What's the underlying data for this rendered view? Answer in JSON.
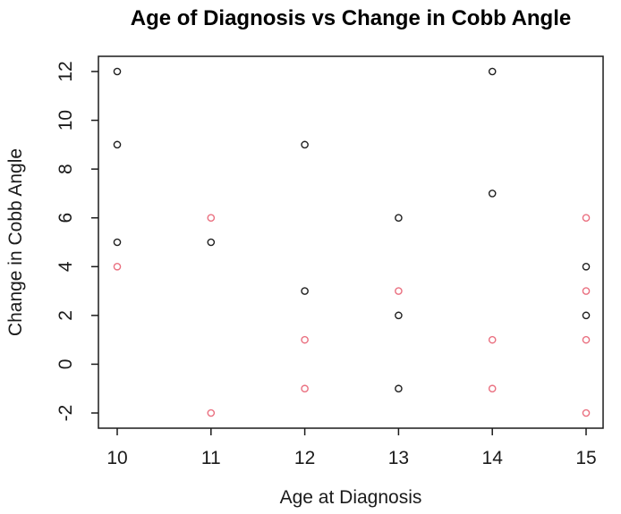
{
  "figure": {
    "background": "#ffffff",
    "text_color": "#1a1a1a",
    "title_color": "#000000"
  },
  "chart_data": {
    "type": "scatter",
    "title": "Age of Diagnosis vs Change in Cobb Angle",
    "xlabel": "Age at Diagnosis",
    "ylabel": "Change in Cobb Angle",
    "xlim": [
      10,
      15
    ],
    "ylim": [
      -2,
      12
    ],
    "x_ticks": [
      10,
      11,
      12,
      13,
      14,
      15
    ],
    "y_ticks": [
      -2,
      0,
      2,
      4,
      6,
      8,
      10,
      12
    ],
    "grid": false,
    "legend": "none",
    "marker": "open-circle",
    "axis_color": "#1a1a1a",
    "series": [
      {
        "name": "black-points",
        "color": "#1f1f1f",
        "points": [
          [
            10,
            12
          ],
          [
            10,
            9
          ],
          [
            10,
            5
          ],
          [
            11,
            5
          ],
          [
            12,
            9
          ],
          [
            12,
            3
          ],
          [
            13,
            6
          ],
          [
            13,
            2
          ],
          [
            13,
            -1
          ],
          [
            14,
            12
          ],
          [
            14,
            7
          ],
          [
            15,
            4
          ],
          [
            15,
            2
          ]
        ]
      },
      {
        "name": "red-points",
        "color": "#ea7080",
        "points": [
          [
            10,
            4
          ],
          [
            11,
            6
          ],
          [
            11,
            -2
          ],
          [
            12,
            1
          ],
          [
            12,
            -1
          ],
          [
            13,
            3
          ],
          [
            14,
            1
          ],
          [
            14,
            -1
          ],
          [
            15,
            6
          ],
          [
            15,
            3
          ],
          [
            15,
            1
          ],
          [
            15,
            -2
          ]
        ]
      }
    ]
  }
}
